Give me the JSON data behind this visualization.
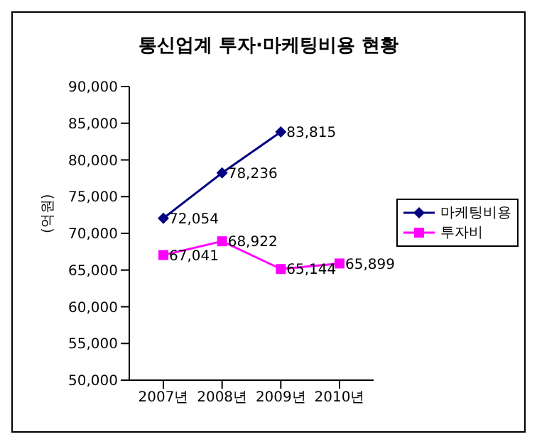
{
  "chart_data": {
    "type": "line",
    "title": "통신업계 투자·마케팅비용 현황",
    "ylabel": "(억원)",
    "categories": [
      "2007년",
      "2008년",
      "2009년",
      "2010년"
    ],
    "series": [
      {
        "name": "마케팅비용",
        "color": "#000080",
        "marker": "diamond",
        "values": [
          72054,
          78236,
          83815,
          null
        ],
        "value_labels": [
          "72,054",
          "78,236",
          "83,815",
          null
        ]
      },
      {
        "name": "투자비",
        "color": "#ff00ff",
        "marker": "square",
        "values": [
          67041,
          68922,
          65144,
          65899
        ],
        "value_labels": [
          "67,041",
          "68,922",
          "65,144",
          "65,899"
        ]
      }
    ],
    "ylim": [
      50000,
      90000
    ],
    "yticks": [
      {
        "value": 50000,
        "label": "50,000"
      },
      {
        "value": 55000,
        "label": "55,000"
      },
      {
        "value": 60000,
        "label": "60,000"
      },
      {
        "value": 65000,
        "label": "65,000"
      },
      {
        "value": 70000,
        "label": "70,000"
      },
      {
        "value": 75000,
        "label": "75,000"
      },
      {
        "value": 80000,
        "label": "80,000"
      },
      {
        "value": 85000,
        "label": "85,000"
      },
      {
        "value": 90000,
        "label": "90,000"
      }
    ],
    "legend": "right",
    "grid": false,
    "line_style": "solid"
  }
}
